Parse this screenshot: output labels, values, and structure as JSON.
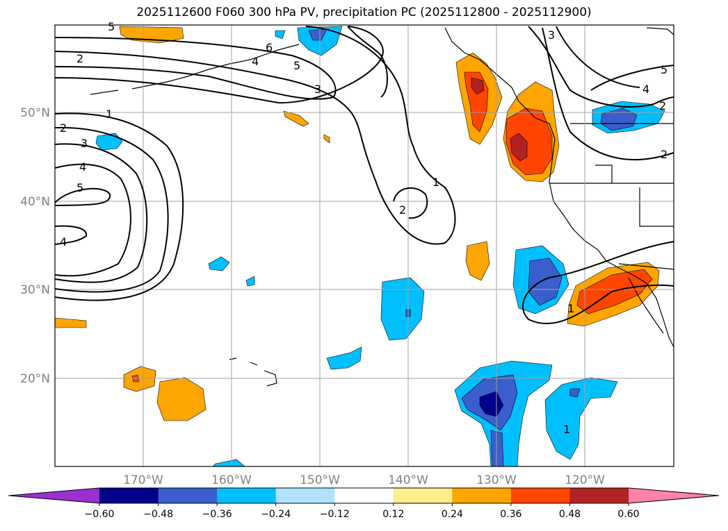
{
  "title": "2025112600 F060 300 hPa PV, precipitation PC (2025112800 - 2025112900)",
  "map": {
    "lon_labels": [
      "170°W",
      "160°W",
      "150°W",
      "140°W",
      "130°W",
      "120°W"
    ],
    "lat_labels": [
      "50°N",
      "40°N",
      "30°N",
      "20°N"
    ],
    "contour_labels": {
      "c1": "1",
      "c2": "2",
      "c3": "3",
      "c4": "4",
      "c5": "5",
      "c6": "6"
    }
  },
  "colorbar": {
    "ticks": [
      "−0.60",
      "−0.48",
      "−0.36",
      "−0.24",
      "−0.12",
      "0.12",
      "0.24",
      "0.36",
      "0.48",
      "0.60"
    ],
    "colors": [
      "#9b30d0",
      "#00008b",
      "#3a5fcd",
      "#00bfff",
      "#b0e2ff",
      "#ffffff",
      "#ffec8b",
      "#ffa500",
      "#ff4500",
      "#b22222",
      "#ff82ab"
    ]
  }
}
